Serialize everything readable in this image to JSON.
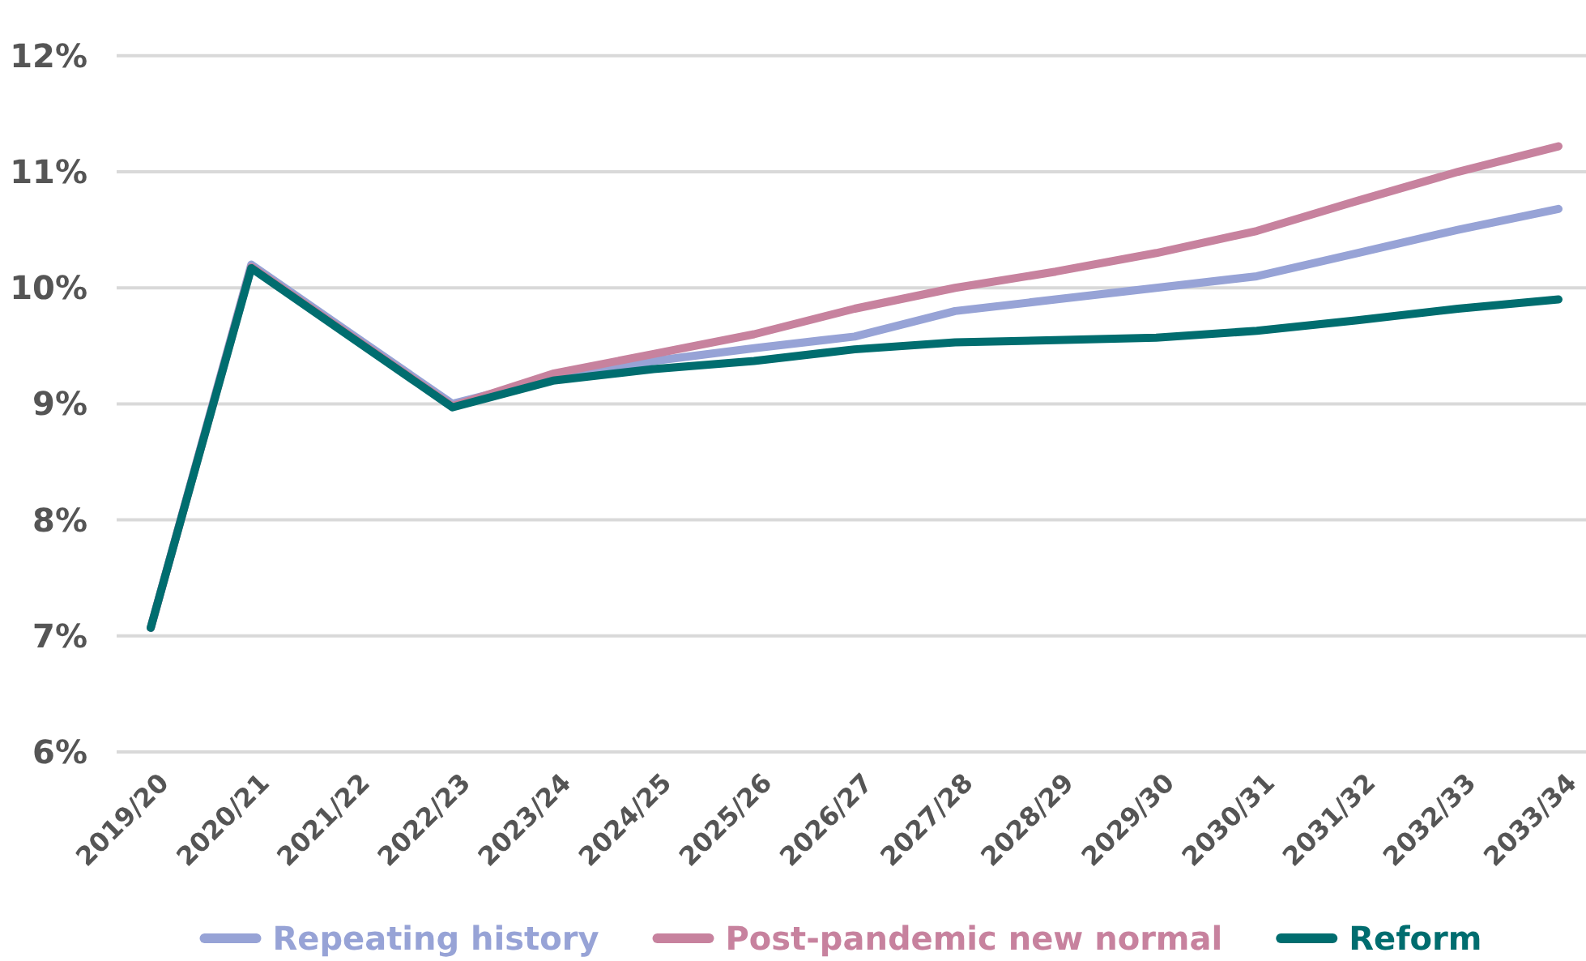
{
  "chart_data": {
    "type": "line",
    "categories": [
      "2019/20",
      "2020/21",
      "2021/22",
      "2022/23",
      "2023/24",
      "2024/25",
      "2025/26",
      "2026/27",
      "2027/28",
      "2028/29",
      "2029/30",
      "2030/31",
      "2031/32",
      "2032/33",
      "2033/34"
    ],
    "series": [
      {
        "name": "Repeating history",
        "color": "#97a3d6",
        "values": [
          7.07,
          10.2,
          9.6,
          9.0,
          9.22,
          9.37,
          9.48,
          9.58,
          9.8,
          9.9,
          10.0,
          10.1,
          10.3,
          10.5,
          10.68
        ]
      },
      {
        "name": "Post-pandemic new normal",
        "color": "#c7829e",
        "values": [
          7.07,
          10.18,
          9.58,
          8.98,
          9.26,
          9.43,
          9.6,
          9.82,
          10.0,
          10.14,
          10.3,
          10.49,
          10.75,
          11.0,
          11.22
        ]
      },
      {
        "name": "Reform",
        "color": "#006d6f",
        "values": [
          7.07,
          10.17,
          9.57,
          8.97,
          9.2,
          9.3,
          9.37,
          9.47,
          9.53,
          9.55,
          9.57,
          9.63,
          9.72,
          9.82,
          9.9
        ]
      }
    ],
    "ylim": [
      6,
      12.02
    ],
    "yticks": [
      {
        "value": 6,
        "label": "6%"
      },
      {
        "value": 7,
        "label": "7%"
      },
      {
        "value": 8,
        "label": "8%"
      },
      {
        "value": 9,
        "label": "9%"
      },
      {
        "value": 10,
        "label": "10%"
      },
      {
        "value": 11,
        "label": "11%"
      },
      {
        "value": 12,
        "label": "12%"
      }
    ],
    "grid": "y",
    "legend": "bottom",
    "line_style": "solid",
    "marker": "none"
  }
}
